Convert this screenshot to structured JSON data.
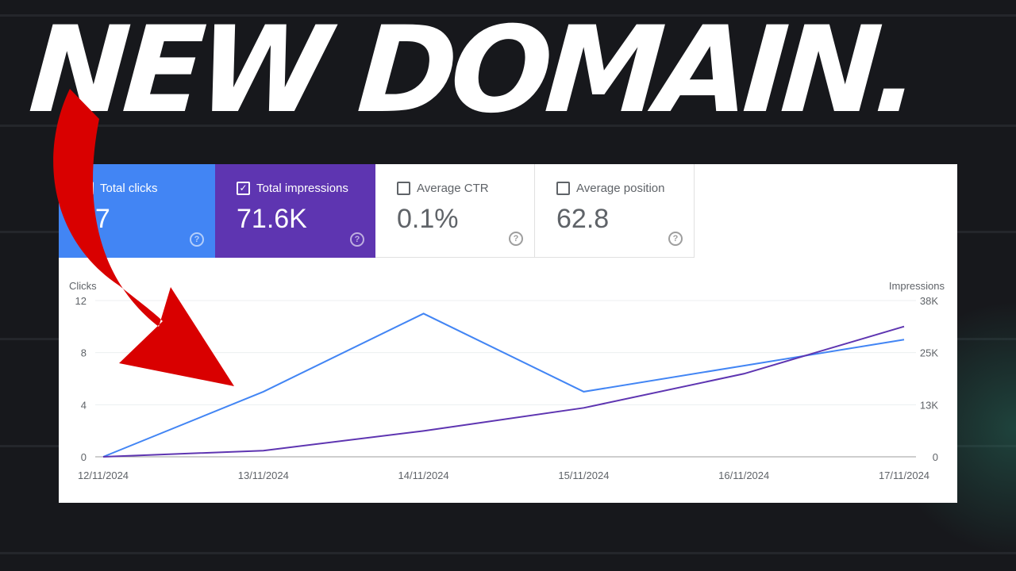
{
  "headline": "NEW DOMAIN.",
  "cards": [
    {
      "label": "Total clicks",
      "value": "37",
      "checked": true,
      "color": "#4285f4"
    },
    {
      "label": "Total impressions",
      "value": "71.6K",
      "checked": true,
      "color": "#5e35b1"
    },
    {
      "label": "Average CTR",
      "value": "0.1%",
      "checked": false
    },
    {
      "label": "Average position",
      "value": "62.8",
      "checked": false
    }
  ],
  "help_glyph": "?",
  "check_glyph": "✓",
  "chart_data": {
    "type": "line",
    "x": [
      "12/11/2024",
      "13/11/2024",
      "14/11/2024",
      "15/11/2024",
      "16/11/2024",
      "17/11/2024"
    ],
    "left_axis": {
      "label": "Clicks",
      "ticks": [
        "0",
        "4",
        "8",
        "12"
      ],
      "range": [
        0,
        12
      ]
    },
    "right_axis": {
      "label": "Impressions",
      "ticks": [
        "0",
        "13K",
        "25K",
        "38K"
      ],
      "range": [
        0,
        38000
      ]
    },
    "series": [
      {
        "name": "Clicks",
        "axis": "left",
        "color": "#4285f4",
        "values": [
          0,
          5,
          11,
          5,
          7,
          9
        ]
      },
      {
        "name": "Impressions",
        "axis": "right",
        "color": "#5e35b1",
        "values": [
          0,
          1500,
          6300,
          11900,
          20200,
          31700
        ]
      }
    ],
    "grid": true
  }
}
